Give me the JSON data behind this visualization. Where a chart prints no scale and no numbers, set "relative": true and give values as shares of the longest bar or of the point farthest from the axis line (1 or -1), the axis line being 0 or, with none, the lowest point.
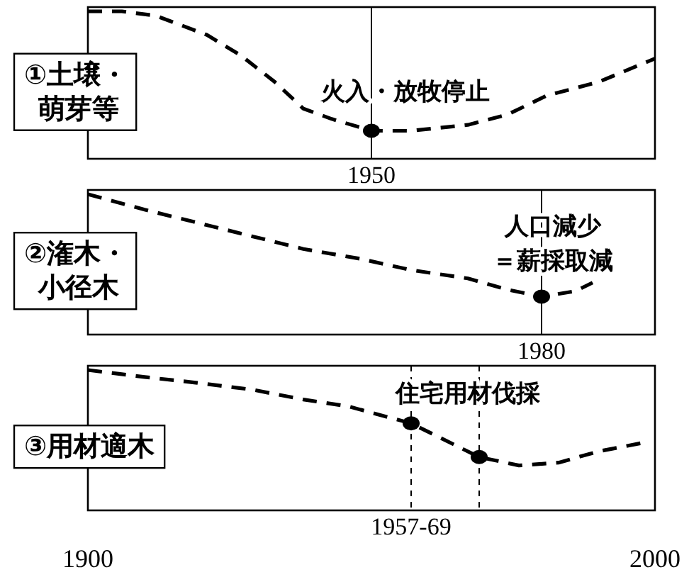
{
  "chart_data": [
    {
      "type": "line",
      "title": "①土壌・萌芽等",
      "relative": true,
      "xlim": [
        1900,
        2000
      ],
      "tick_labels": false,
      "line_style": "dashed",
      "series": [
        {
          "type": "line",
          "color": "#000000",
          "marker": "none",
          "x": [
            1900,
            1906,
            1912,
            1921,
            1927,
            1933,
            1938,
            1943,
            1950,
            1957,
            1967,
            1974,
            1981,
            1990,
            2000
          ],
          "values": [
            1.0,
            1.0,
            0.97,
            0.84,
            0.7,
            0.52,
            0.34,
            0.27,
            0.19,
            0.19,
            0.23,
            0.3,
            0.43,
            0.52,
            0.68
          ]
        },
        {
          "type": "scatter",
          "color": "#000000",
          "marker": "circle",
          "x": [
            1950
          ],
          "values": [
            0.19
          ]
        }
      ],
      "ref_lines": [
        {
          "axis": "x",
          "value": 1950,
          "label": "1950",
          "line_style": "solid"
        }
      ],
      "annotations": [
        "火入・放牧停止"
      ]
    },
    {
      "type": "line",
      "title": "②潅木・小径木",
      "relative": true,
      "xlim": [
        1900,
        2000
      ],
      "tick_labels": false,
      "line_style": "dashed",
      "series": [
        {
          "type": "line",
          "color": "#000000",
          "marker": "none",
          "x": [
            1900,
            1910,
            1919,
            1929,
            1938,
            1948,
            1957,
            1967,
            1974,
            1980,
            1986,
            1989
          ],
          "values": [
            1.0,
            0.89,
            0.8,
            0.7,
            0.61,
            0.54,
            0.46,
            0.4,
            0.32,
            0.27,
            0.31,
            0.37
          ]
        },
        {
          "type": "scatter",
          "color": "#000000",
          "marker": "circle",
          "x": [
            1980
          ],
          "values": [
            0.27
          ]
        }
      ],
      "ref_lines": [
        {
          "axis": "x",
          "value": 1980,
          "label": "1980",
          "line_style": "solid"
        }
      ],
      "annotations": [
        "人口減少",
        "＝薪採取減"
      ]
    },
    {
      "type": "line",
      "title": "③用材適木",
      "relative": true,
      "xlim": [
        1900,
        2000
      ],
      "xticks": [
        1900,
        2000
      ],
      "tick_labels": "x",
      "line_style": "dashed",
      "series": [
        {
          "type": "line",
          "color": "#000000",
          "marker": "none",
          "x": [
            1900,
            1910,
            1919,
            1929,
            1938,
            1946,
            1957,
            1969,
            1976,
            1983,
            1990,
            1999
          ],
          "values": [
            1.0,
            0.95,
            0.91,
            0.86,
            0.79,
            0.74,
            0.62,
            0.38,
            0.32,
            0.34,
            0.42,
            0.49
          ]
        },
        {
          "type": "scatter",
          "color": "#000000",
          "marker": "circle",
          "x": [
            1957,
            1969
          ],
          "values": [
            0.62,
            0.38
          ]
        }
      ],
      "ref_lines": [
        {
          "axis": "x",
          "value": 1957,
          "label": "1957-69",
          "line_style": "dashed"
        },
        {
          "axis": "x",
          "value": 1969,
          "line_style": "dashed"
        }
      ],
      "annotations": [
        "住宅用材伐採"
      ]
    }
  ]
}
